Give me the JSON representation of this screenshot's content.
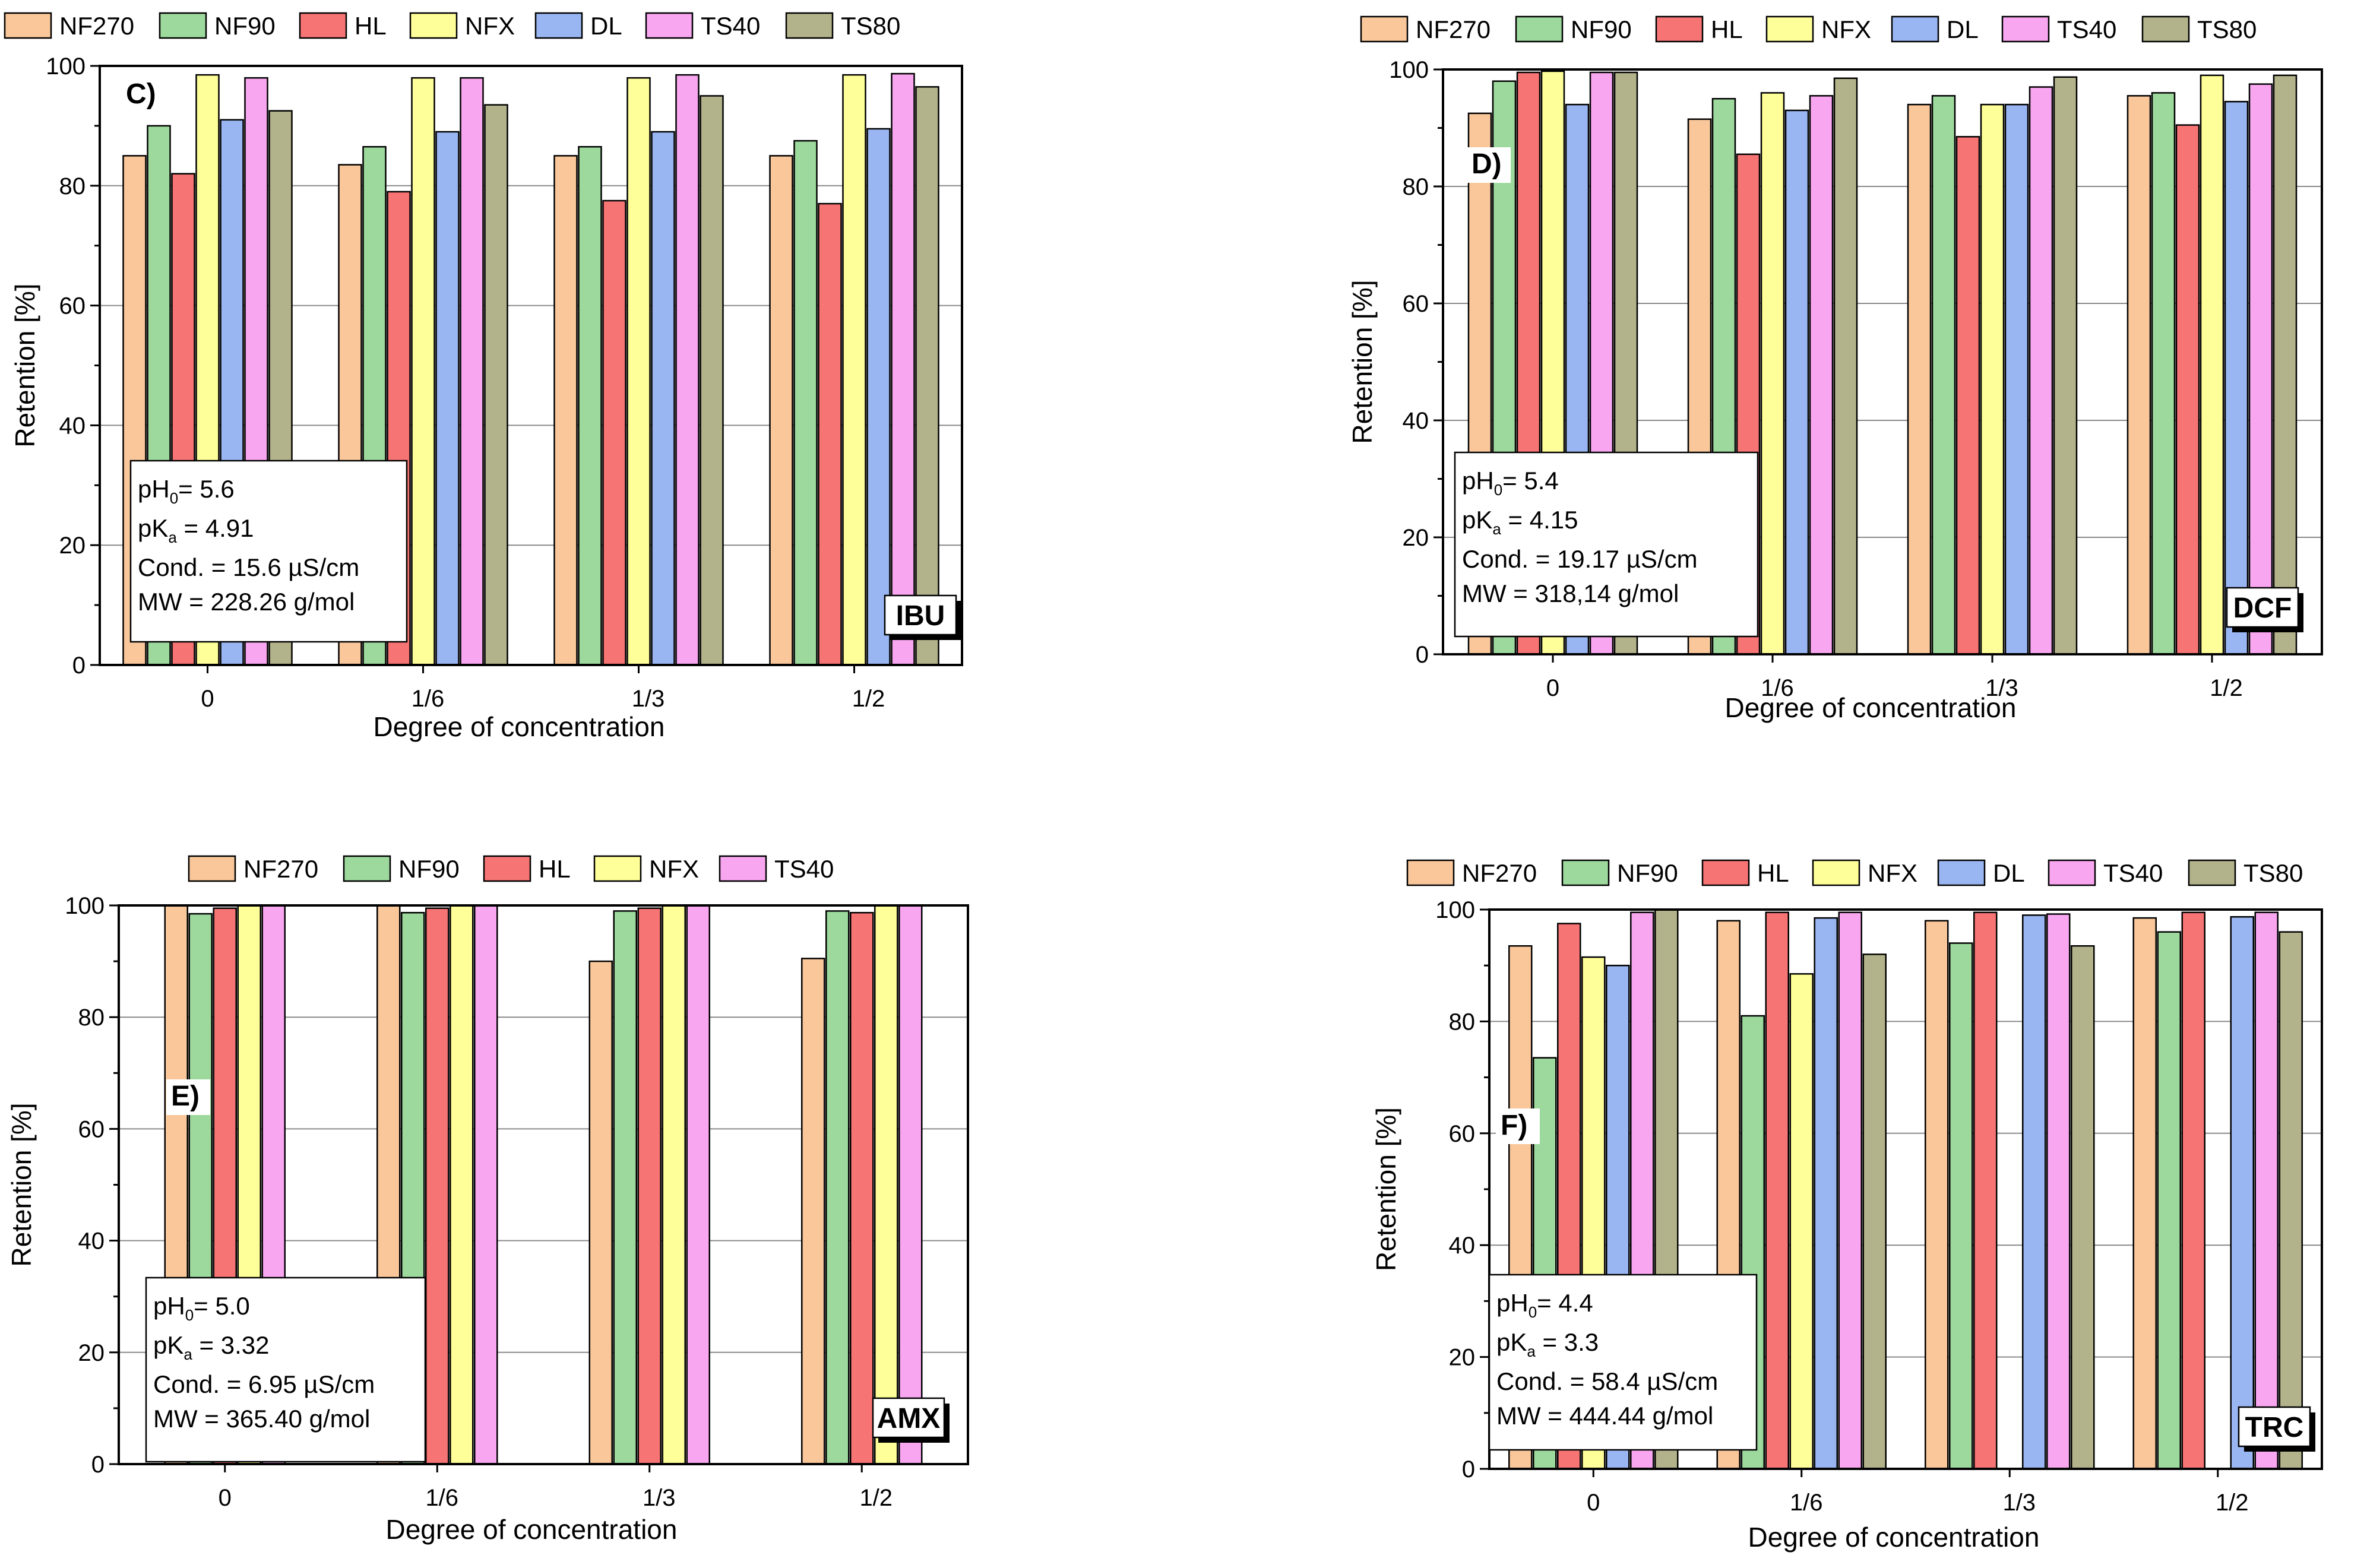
{
  "figure": {
    "legend_colors": {
      "NF270": "#f9c79a",
      "NF90": "#9dd99d",
      "HL": "#f77474",
      "NFX": "#ffff99",
      "DL": "#9ab6f2",
      "TS40": "#f9a6f1",
      "TS80": "#b3b38b"
    }
  },
  "chart_data": [
    {
      "type": "bar",
      "panel_label": "C)",
      "compound": "IBU",
      "categories": [
        "0",
        "1/6",
        "1/3",
        "1/2"
      ],
      "xlabel": "Degree of concentration",
      "ylabel": "Retention [%]",
      "ylim": [
        0,
        100
      ],
      "yticks": [
        "0",
        "20",
        "40",
        "60",
        "80",
        "100"
      ],
      "legend": [
        "NF270",
        "NF90",
        "HL",
        "NFX",
        "DL",
        "TS40",
        "TS80"
      ],
      "series": [
        {
          "name": "NF270",
          "values": [
            85.0,
            83.5,
            85.0,
            85.0
          ]
        },
        {
          "name": "NF90",
          "values": [
            90.0,
            86.5,
            86.5,
            87.5
          ]
        },
        {
          "name": "HL",
          "values": [
            82.0,
            79.0,
            77.5,
            77.0
          ]
        },
        {
          "name": "NFX",
          "values": [
            98.5,
            98.0,
            98.0,
            98.5
          ]
        },
        {
          "name": "DL",
          "values": [
            91.0,
            89.0,
            89.0,
            89.5
          ]
        },
        {
          "name": "TS40",
          "values": [
            98.0,
            98.0,
            98.5,
            98.7
          ]
        },
        {
          "name": "TS80",
          "values": [
            92.5,
            93.5,
            95.0,
            96.5
          ]
        }
      ],
      "info": {
        "ph_prefix": "pH",
        "ph_sub": "0",
        "ph_value": "= 5.6",
        "pka_prefix": "pK",
        "pka_sub": "a",
        "pka_value": " = 4.91",
        "cond": "Cond. = 15.6 µS/cm",
        "mw": "MW = 228.26 g/mol"
      }
    },
    {
      "type": "bar",
      "panel_label": "D)",
      "compound": "DCF",
      "categories": [
        "0",
        "1/6",
        "1/3",
        "1/2"
      ],
      "xlabel": "Degree of concentration",
      "ylabel": "Retention [%]",
      "ylim": [
        0,
        100
      ],
      "yticks": [
        "0",
        "20",
        "40",
        "60",
        "80",
        "100"
      ],
      "legend": [
        "NF270",
        "NF90",
        "HL",
        "NFX",
        "DL",
        "TS40",
        "TS80"
      ],
      "series": [
        {
          "name": "NF270",
          "values": [
            92.5,
            91.5,
            94.0,
            95.5
          ]
        },
        {
          "name": "NF90",
          "values": [
            98.0,
            95.0,
            95.5,
            96.0
          ]
        },
        {
          "name": "HL",
          "values": [
            99.5,
            85.5,
            88.5,
            90.5
          ]
        },
        {
          "name": "NFX",
          "values": [
            99.7,
            96.0,
            94.0,
            99.0
          ]
        },
        {
          "name": "DL",
          "values": [
            94.0,
            93.0,
            94.0,
            94.5
          ]
        },
        {
          "name": "TS40",
          "values": [
            99.5,
            95.5,
            97.0,
            97.5
          ]
        },
        {
          "name": "TS80",
          "values": [
            99.5,
            98.5,
            98.7,
            99.0
          ]
        }
      ],
      "info": {
        "ph_prefix": "pH",
        "ph_sub": "0",
        "ph_value": "= 5.4",
        "pka_prefix": "pK",
        "pka_sub": "a",
        "pka_value": " = 4.15",
        "cond": "Cond. = 19.17 µS/cm",
        "mw": "MW = 318,14 g/mol"
      }
    },
    {
      "type": "bar",
      "panel_label": "E)",
      "compound": "AMX",
      "categories": [
        "0",
        "1/6",
        "1/3",
        "1/2"
      ],
      "xlabel": "Degree of concentration",
      "ylabel": "Retention [%]",
      "ylim": [
        0,
        100
      ],
      "yticks": [
        "0",
        "20",
        "40",
        "60",
        "80",
        "100"
      ],
      "legend": [
        "NF270",
        "NF90",
        "HL",
        "NFX",
        "TS40"
      ],
      "series": [
        {
          "name": "NF270",
          "values": [
            100.0,
            100.0,
            90.0,
            90.5
          ]
        },
        {
          "name": "NF90",
          "values": [
            98.5,
            98.7,
            99.0,
            99.0
          ]
        },
        {
          "name": "HL",
          "values": [
            99.5,
            99.5,
            99.5,
            98.7
          ]
        },
        {
          "name": "NFX",
          "values": [
            100.0,
            100.0,
            100.0,
            100.0
          ]
        },
        {
          "name": "TS40",
          "values": [
            100.0,
            100.0,
            100.0,
            100.0
          ]
        }
      ],
      "info": {
        "ph_prefix": "pH",
        "ph_sub": "0",
        "ph_value": "= 5.0",
        "pka_prefix": "pK",
        "pka_sub": "a",
        "pka_value": " = 3.32",
        "cond": "Cond. = 6.95 µS/cm",
        "mw": "MW = 365.40 g/mol"
      }
    },
    {
      "type": "bar",
      "panel_label": "F)",
      "compound": "TRC",
      "categories": [
        "0",
        "1/6",
        "1/3",
        "1/2"
      ],
      "xlabel": "Degree of concentration",
      "ylabel": "Retention [%]",
      "ylim": [
        0,
        100
      ],
      "yticks": [
        "0",
        "20",
        "40",
        "60",
        "80",
        "100"
      ],
      "legend": [
        "NF270",
        "NF90",
        "HL",
        "NFX",
        "DL",
        "TS40",
        "TS80"
      ],
      "series": [
        {
          "name": "NF270",
          "values": [
            93.5,
            98.0,
            98.0,
            98.5
          ]
        },
        {
          "name": "NF90",
          "values": [
            73.5,
            81.0,
            94.0,
            96.0
          ]
        },
        {
          "name": "HL",
          "values": [
            97.5,
            99.5,
            99.5,
            99.5
          ]
        },
        {
          "name": "NFX",
          "values": [
            91.5,
            88.5,
            null,
            null
          ]
        },
        {
          "name": "DL",
          "values": [
            90.0,
            98.5,
            99.0,
            98.7
          ]
        },
        {
          "name": "TS40",
          "values": [
            99.5,
            99.5,
            99.2,
            99.5
          ]
        },
        {
          "name": "TS80",
          "values": [
            100.0,
            92.0,
            93.5,
            96.0
          ]
        }
      ],
      "info": {
        "ph_prefix": "pH",
        "ph_sub": "0",
        "ph_value": "= 4.4",
        "pka_prefix": "pK",
        "pka_sub": "a",
        "pka_value": " = 3.3",
        "cond": "Cond. = 58.4 µS/cm",
        "mw": "MW = 444.44 g/mol"
      }
    }
  ]
}
